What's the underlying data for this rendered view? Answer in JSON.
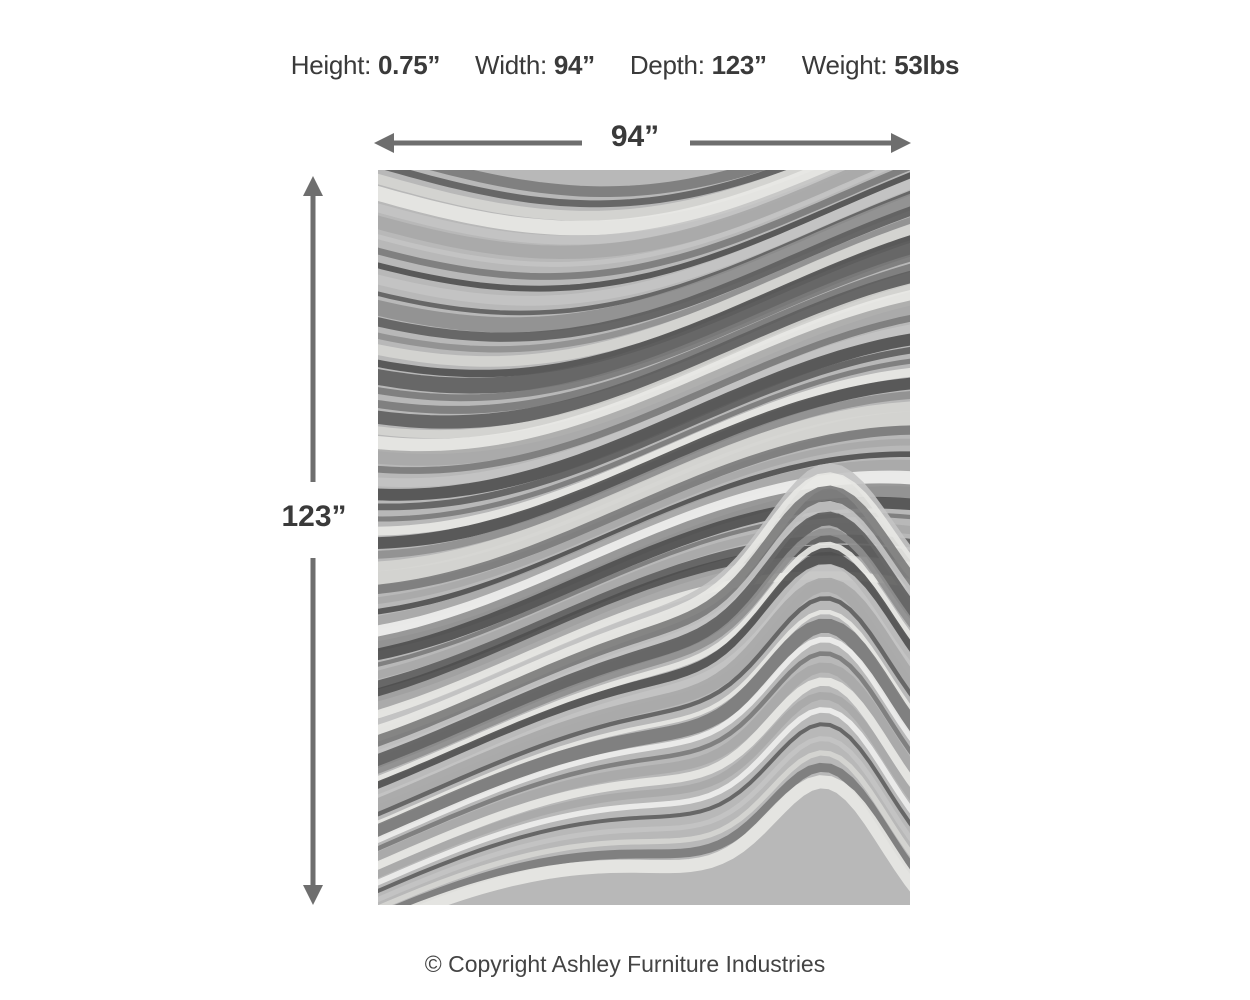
{
  "specs": [
    {
      "label": "Height:",
      "value": "0.75”"
    },
    {
      "label": "Width:",
      "value": "94”"
    },
    {
      "label": "Depth:",
      "value": "123”"
    },
    {
      "label": "Weight:",
      "value": "53lbs"
    }
  ],
  "dimensions": {
    "width_label": "94”",
    "height_label": "123”"
  },
  "colors": {
    "arrow": "#6e6e6e",
    "text": "#3a3a3a"
  },
  "copyright": "© Copyright Ashley Furniture Industries"
}
